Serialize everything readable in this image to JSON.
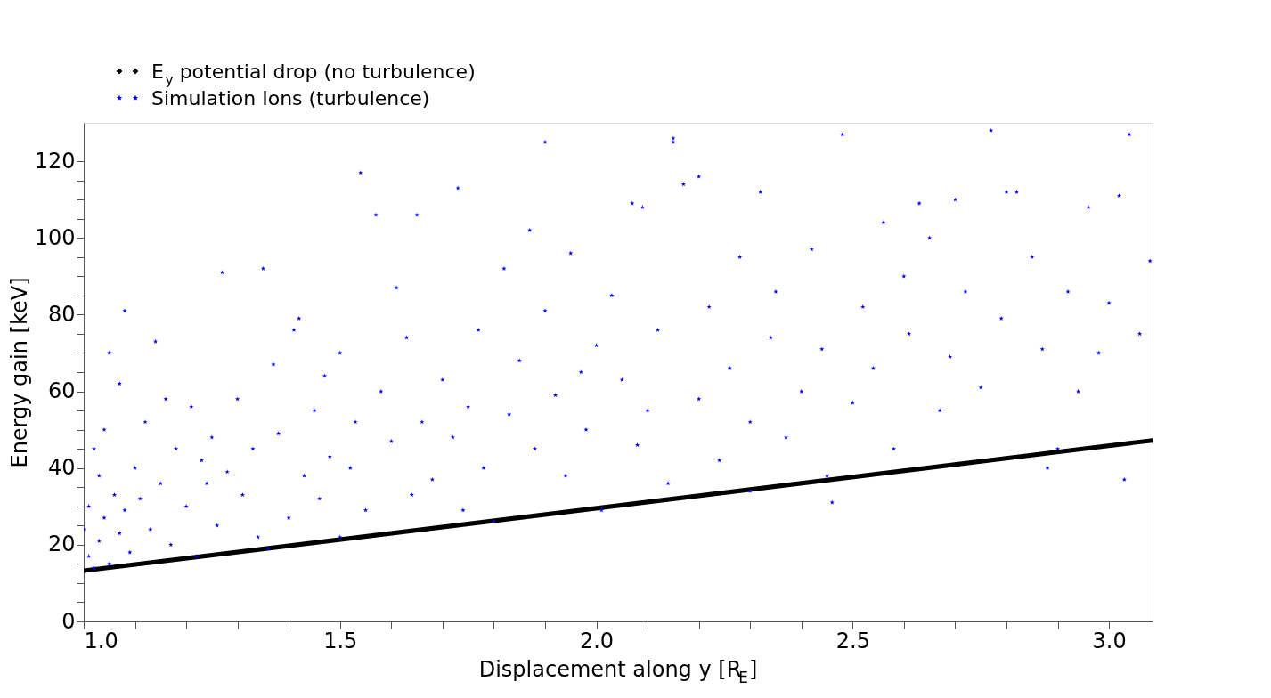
{
  "chart_data": {
    "type": "scatter",
    "xlabel": "Displacement along y [R$_{E}$]",
    "ylabel": "Energy gain [keV]",
    "xlim": [
      1.0,
      3.085
    ],
    "ylim": [
      0,
      130
    ],
    "xticks": [
      {
        "value": 1.0,
        "label": "1.0"
      },
      {
        "value": 1.1,
        "label": null
      },
      {
        "value": 1.2,
        "label": null
      },
      {
        "value": 1.3,
        "label": null
      },
      {
        "value": 1.4,
        "label": null
      },
      1.5,
      {
        "value": 1.6,
        "label": null
      },
      {
        "value": 1.7,
        "label": null
      },
      {
        "value": 1.8,
        "label": null
      },
      {
        "value": 1.9,
        "label": null
      },
      {
        "value": 2.0,
        "label": "2.0"
      },
      {
        "value": 2.1,
        "label": null
      },
      {
        "value": 2.2,
        "label": null
      },
      {
        "value": 2.3,
        "label": null
      },
      {
        "value": 2.4,
        "label": null
      },
      2.5,
      {
        "value": 2.6,
        "label": null
      },
      {
        "value": 2.7,
        "label": null
      },
      {
        "value": 2.8,
        "label": null
      },
      {
        "value": 2.9,
        "label": null
      },
      {
        "value": 3.0,
        "label": "3.0"
      }
    ],
    "yticks": [
      0,
      {
        "value": 5,
        "label": null
      },
      {
        "value": 10,
        "label": null
      },
      {
        "value": 15,
        "label": null
      },
      20,
      {
        "value": 25,
        "label": null
      },
      {
        "value": 30,
        "label": null
      },
      {
        "value": 35,
        "label": null
      },
      40,
      {
        "value": 45,
        "label": null
      },
      {
        "value": 50,
        "label": null
      },
      {
        "value": 55,
        "label": null
      },
      60,
      {
        "value": 65,
        "label": null
      },
      {
        "value": 70,
        "label": null
      },
      {
        "value": 75,
        "label": null
      },
      80,
      {
        "value": 85,
        "label": null
      },
      {
        "value": 90,
        "label": null
      },
      {
        "value": 95,
        "label": null
      },
      100,
      {
        "value": 105,
        "label": null
      },
      {
        "value": 110,
        "label": null
      },
      {
        "value": 115,
        "label": null
      },
      120
    ],
    "grid": false,
    "legend": "top left",
    "series": [
      {
        "name": "E$_{y}$ potential drop (no turbulence)",
        "type": "line",
        "marker": "diamond",
        "color": "#000000",
        "x": [
          1.0,
          3.085
        ],
        "values": [
          13.2,
          47.2
        ]
      },
      {
        "name": "Simulation Ions (turbulence)",
        "type": "scatter",
        "marker": "star",
        "color": "#0000ff",
        "x": [
          1.0,
          1.01,
          1.01,
          1.02,
          1.02,
          1.03,
          1.03,
          1.04,
          1.04,
          1.05,
          1.05,
          1.06,
          1.07,
          1.07,
          1.08,
          1.08,
          1.09,
          1.1,
          1.11,
          1.12,
          1.13,
          1.14,
          1.15,
          1.16,
          1.17,
          1.18,
          1.2,
          1.21,
          1.22,
          1.23,
          1.24,
          1.25,
          1.26,
          1.27,
          1.28,
          1.3,
          1.31,
          1.33,
          1.34,
          1.35,
          1.36,
          1.37,
          1.38,
          1.4,
          1.41,
          1.42,
          1.43,
          1.45,
          1.46,
          1.47,
          1.48,
          1.5,
          1.5,
          1.52,
          1.53,
          1.54,
          1.55,
          1.57,
          1.58,
          1.6,
          1.61,
          1.63,
          1.64,
          1.65,
          1.66,
          1.68,
          1.7,
          1.72,
          1.73,
          1.74,
          1.75,
          1.77,
          1.78,
          1.8,
          1.82,
          1.83,
          1.85,
          1.87,
          1.88,
          1.9,
          1.9,
          1.92,
          1.94,
          1.95,
          1.97,
          1.98,
          2.0,
          2.01,
          2.03,
          2.05,
          2.07,
          2.08,
          2.09,
          2.1,
          2.12,
          2.14,
          2.15,
          2.15,
          2.17,
          2.2,
          2.2,
          2.22,
          2.24,
          2.26,
          2.28,
          2.3,
          2.3,
          2.32,
          2.34,
          2.35,
          2.37,
          2.4,
          2.42,
          2.44,
          2.45,
          2.46,
          2.48,
          2.5,
          2.52,
          2.54,
          2.56,
          2.58,
          2.6,
          2.61,
          2.63,
          2.65,
          2.67,
          2.69,
          2.7,
          2.72,
          2.75,
          2.77,
          2.79,
          2.8,
          2.82,
          2.85,
          2.87,
          2.88,
          2.9,
          2.92,
          2.94,
          2.96,
          2.98,
          3.0,
          3.02,
          3.03,
          3.04,
          3.06,
          3.08
        ],
        "values": [
          24,
          30,
          17,
          45,
          14,
          38,
          21,
          50,
          27,
          70,
          15,
          33,
          23,
          62,
          81,
          29,
          18,
          40,
          32,
          52,
          24,
          73,
          36,
          58,
          20,
          45,
          30,
          56,
          17,
          42,
          36,
          48,
          25,
          91,
          39,
          58,
          33,
          45,
          22,
          92,
          19,
          67,
          49,
          27,
          76,
          79,
          38,
          55,
          32,
          64,
          43,
          22,
          70,
          40,
          52,
          117,
          29,
          106,
          60,
          47,
          87,
          74,
          33,
          106,
          52,
          37,
          63,
          48,
          113,
          29,
          56,
          76,
          40,
          26,
          92,
          54,
          68,
          102,
          45,
          125,
          81,
          59,
          38,
          96,
          65,
          50,
          72,
          29,
          85,
          63,
          109,
          46,
          108,
          55,
          76,
          36,
          126,
          125,
          114,
          58,
          116,
          82,
          42,
          66,
          95,
          52,
          34,
          112,
          74,
          86,
          48,
          60,
          97,
          71,
          38,
          31,
          127,
          57,
          82,
          66,
          104,
          45,
          90,
          75,
          109,
          100,
          55,
          69,
          110,
          86,
          61,
          128,
          79,
          112,
          112,
          95,
          71,
          40,
          45,
          86,
          60,
          108,
          70,
          83,
          111,
          37,
          127,
          75,
          94
        ]
      }
    ]
  }
}
